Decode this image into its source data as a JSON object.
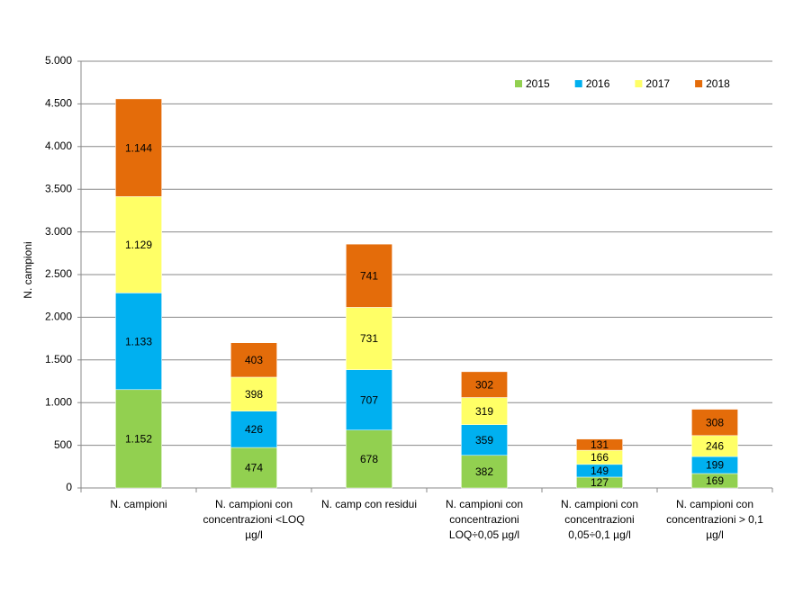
{
  "chart_data": {
    "type": "stacked-bar",
    "y_label": "N. campioni",
    "categories": [
      "N. campioni",
      "N. campioni con concentrazioni <LOQ µg/l",
      "N. camp con residui",
      "N. campioni con concentrazioni LOQ÷0,05 µg/l",
      "N. campioni con concentrazioni 0,05÷0,1 µg/l",
      "N. campioni con concentrazioni > 0,1 µg/l"
    ],
    "series": [
      {
        "name": "2015",
        "color": "#92d050",
        "values": [
          1152,
          474,
          678,
          382,
          127,
          169
        ],
        "value_labels": [
          "1.152",
          "474",
          "678",
          "382",
          "127",
          "169"
        ]
      },
      {
        "name": "2016",
        "color": "#00b0f0",
        "values": [
          1133,
          426,
          707,
          359,
          149,
          199
        ],
        "value_labels": [
          "1.133",
          "426",
          "707",
          "359",
          "149",
          "199"
        ]
      },
      {
        "name": "2017",
        "color": "#ffff66",
        "values": [
          1129,
          398,
          731,
          319,
          166,
          246
        ],
        "value_labels": [
          "1.129",
          "398",
          "731",
          "319",
          "166",
          "246"
        ]
      },
      {
        "name": "2018",
        "color": "#e46c0a",
        "values": [
          1144,
          403,
          741,
          302,
          131,
          308
        ],
        "value_labels": [
          "1.144",
          "403",
          "741",
          "302",
          "131",
          "308"
        ]
      }
    ],
    "ylim": [
      0,
      5000
    ],
    "yticks": [
      0,
      500,
      {
        "value": 1000,
        "label": "1.000"
      },
      {
        "value": 1500,
        "label": "1.500"
      },
      {
        "value": 2000,
        "label": "2.000"
      },
      {
        "value": 2500,
        "label": "2.500"
      },
      {
        "value": 3000,
        "label": "3.000"
      },
      {
        "value": 3500,
        "label": "3.500"
      },
      {
        "value": 4000,
        "label": "4.000"
      },
      {
        "value": 4500,
        "label": "4.500"
      },
      {
        "value": 5000,
        "label": "5.000"
      }
    ],
    "grid": true,
    "legend": "top-right"
  }
}
